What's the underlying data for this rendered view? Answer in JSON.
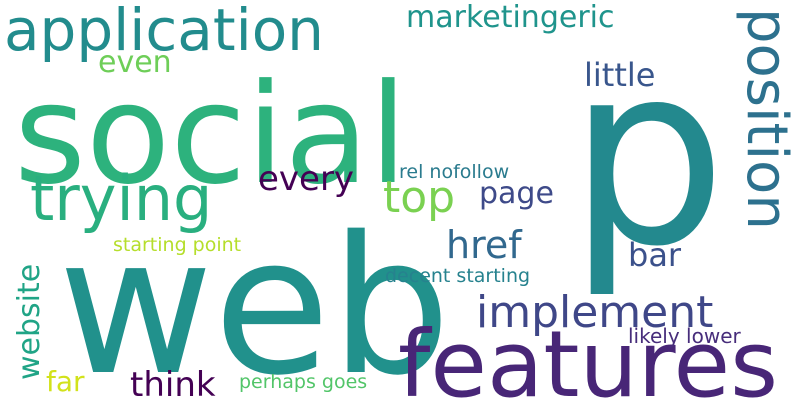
{
  "words": [
    {
      "text": "p",
      "color": "#23898e"
    },
    {
      "text": "social",
      "color": "#2db27d"
    },
    {
      "text": "web",
      "color": "#21918c"
    },
    {
      "text": "features",
      "color": "#482677"
    },
    {
      "text": "application",
      "color": "#228c8d"
    },
    {
      "text": "position",
      "color": "#2d718e"
    },
    {
      "text": "trying",
      "color": "#29af7f"
    },
    {
      "text": "implement",
      "color": "#3f4788"
    },
    {
      "text": "marketingeric",
      "color": "#1f948c"
    },
    {
      "text": "top",
      "color": "#7ad151"
    },
    {
      "text": "every",
      "color": "#440154"
    },
    {
      "text": "website",
      "color": "#20a486"
    },
    {
      "text": "href",
      "color": "#31688e"
    },
    {
      "text": "think",
      "color": "#440154"
    },
    {
      "text": "page",
      "color": "#3e4a89"
    },
    {
      "text": "little",
      "color": "#39568c"
    },
    {
      "text": "bar",
      "color": "#3b518b"
    },
    {
      "text": "even",
      "color": "#6ece58"
    },
    {
      "text": "far",
      "color": "#d2e21b"
    },
    {
      "text": "rel nofollow",
      "color": "#2a7b8e"
    },
    {
      "text": "starting point",
      "color": "#b5de2b"
    },
    {
      "text": "decent starting",
      "color": "#26828e"
    },
    {
      "text": "likely lower",
      "color": "#472d7b"
    },
    {
      "text": "perhaps goes",
      "color": "#52c569"
    }
  ]
}
